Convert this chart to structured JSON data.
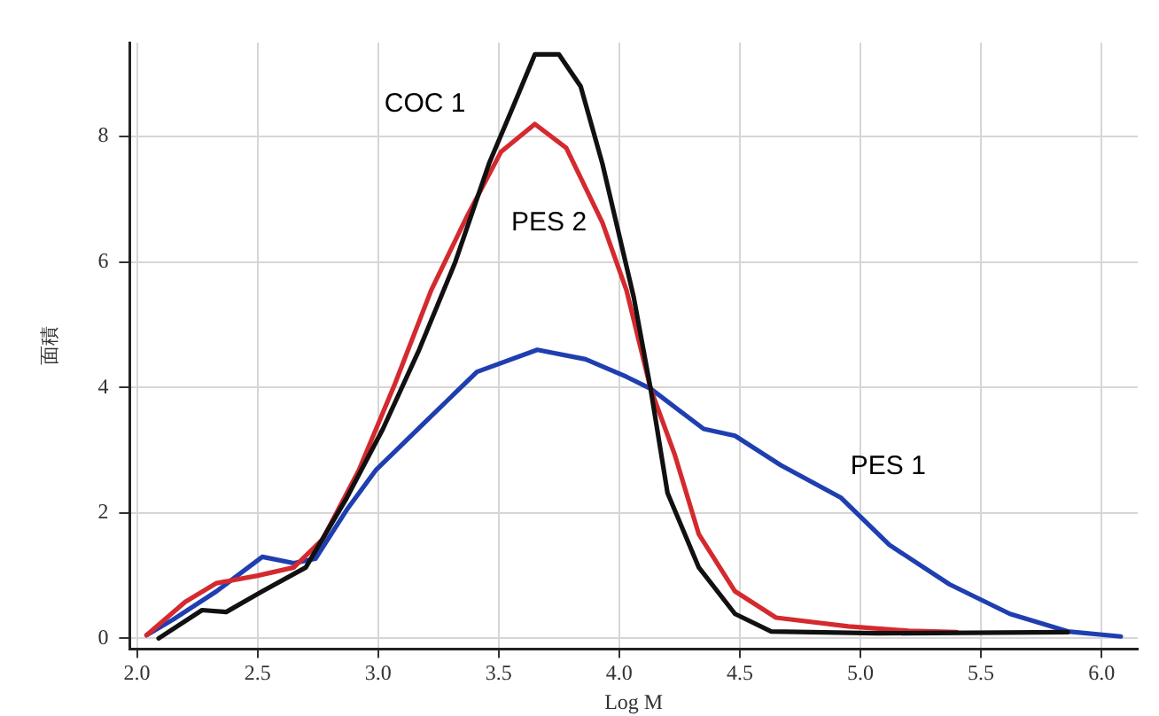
{
  "chart_data": {
    "type": "line",
    "xlabel": "Log M",
    "ylabel": "面積",
    "xlim": [
      1.97,
      6.15
    ],
    "ylim": [
      -0.17,
      9.5
    ],
    "xticks": [
      {
        "value": 2,
        "label": "2.0"
      },
      {
        "value": 2.5,
        "label": "2.5"
      },
      {
        "value": 3,
        "label": "3.0"
      },
      {
        "value": 3.5,
        "label": "3.5"
      },
      {
        "value": 4,
        "label": "4.0"
      },
      {
        "value": 4.5,
        "label": "4.5"
      },
      {
        "value": 5,
        "label": "5.0"
      },
      {
        "value": 5.5,
        "label": "5.5"
      },
      {
        "value": 6,
        "label": "6.0"
      }
    ],
    "yticks": [
      0,
      2,
      4,
      6,
      8
    ],
    "grid": true,
    "legend": false,
    "marker": "none",
    "line_style": "solid",
    "series": [
      {
        "name": "COC 1",
        "color": "#111111",
        "x": [
          2.09,
          2.27,
          2.37,
          2.52,
          2.7,
          2.87,
          3.02,
          3.17,
          3.32,
          3.46,
          3.56,
          3.65,
          3.75,
          3.84,
          3.93,
          4.06,
          4.13,
          4.2,
          4.33,
          4.48,
          4.63,
          5.07,
          5.86
        ],
        "values": [
          0,
          0.45,
          0.42,
          0.75,
          1.13,
          2.24,
          3.34,
          4.6,
          6.0,
          7.57,
          8.48,
          9.31,
          9.31,
          8.8,
          7.57,
          5.44,
          3.98,
          2.32,
          1.13,
          0.39,
          0.11,
          0.08,
          0.1
        ]
      },
      {
        "name": "PES 2",
        "color": "#d42a2f",
        "x": [
          2.04,
          2.2,
          2.33,
          2.5,
          2.65,
          2.77,
          2.92,
          3.07,
          3.22,
          3.37,
          3.51,
          3.65,
          3.78,
          3.93,
          4.03,
          4.13,
          4.23,
          4.33,
          4.48,
          4.65,
          4.95,
          5.2,
          5.4
        ],
        "values": [
          0.05,
          0.58,
          0.88,
          1.0,
          1.13,
          1.58,
          2.68,
          4.06,
          5.55,
          6.74,
          7.76,
          8.2,
          7.82,
          6.63,
          5.55,
          3.98,
          2.93,
          1.66,
          0.75,
          0.33,
          0.19,
          0.12,
          0.1
        ]
      },
      {
        "name": "PES 1",
        "color": "#1f3fb0",
        "x": [
          2.04,
          2.15,
          2.33,
          2.52,
          2.65,
          2.74,
          2.87,
          2.99,
          3.19,
          3.41,
          3.66,
          3.86,
          4.03,
          4.13,
          4.35,
          4.48,
          4.67,
          4.92,
          5.12,
          5.37,
          5.62,
          5.86,
          6.08
        ],
        "values": [
          0.05,
          0.3,
          0.75,
          1.3,
          1.2,
          1.27,
          2.05,
          2.68,
          3.43,
          4.25,
          4.6,
          4.45,
          4.17,
          3.98,
          3.34,
          3.23,
          2.76,
          2.24,
          1.49,
          0.86,
          0.39,
          0.11,
          0.03
        ]
      }
    ]
  }
}
